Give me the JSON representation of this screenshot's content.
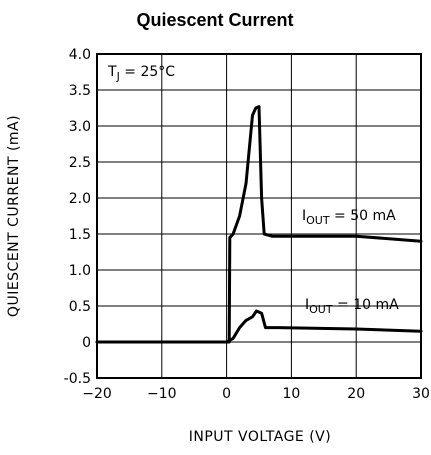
{
  "chart_data": {
    "type": "line",
    "title": "Quiescent Current",
    "xlabel": "INPUT VOLTAGE (V)",
    "ylabel": "QUIESCENT CURRENT (mA)",
    "xlim": [
      -20,
      30
    ],
    "ylim": [
      -0.5,
      4.0
    ],
    "x_ticks": [
      "-20",
      "-10",
      "0",
      "10",
      "20",
      "30"
    ],
    "y_ticks": [
      "-0.5",
      "0",
      "0.5",
      "1.0",
      "1.5",
      "2.0",
      "2.5",
      "3.0",
      "3.5",
      "4.0"
    ],
    "grid": true,
    "annotation": {
      "main": "T",
      "sub": "J",
      "rest": " = 25°C"
    },
    "series": [
      {
        "name_parts": {
          "main": "I",
          "sub": "OUT",
          "rest": " = 50 mA"
        },
        "points": [
          [
            -20,
            0
          ],
          [
            0.4,
            0
          ],
          [
            0.5,
            1.45
          ],
          [
            1,
            1.5
          ],
          [
            2,
            1.75
          ],
          [
            3,
            2.2
          ],
          [
            4,
            3.15
          ],
          [
            4.5,
            3.25
          ],
          [
            5,
            3.27
          ],
          [
            5.4,
            2.0
          ],
          [
            5.8,
            1.5
          ],
          [
            7,
            1.47
          ],
          [
            20,
            1.47
          ],
          [
            30,
            1.4
          ]
        ]
      },
      {
        "name_parts": {
          "main": "I",
          "sub": "OUT",
          "rest": " = 10 mA"
        },
        "points": [
          [
            -20,
            0
          ],
          [
            0,
            0
          ],
          [
            1,
            0.05
          ],
          [
            2,
            0.2
          ],
          [
            3,
            0.3
          ],
          [
            4,
            0.35
          ],
          [
            4.6,
            0.43
          ],
          [
            5.4,
            0.4
          ],
          [
            6,
            0.2
          ],
          [
            8,
            0.2
          ],
          [
            20,
            0.18
          ],
          [
            30,
            0.15
          ]
        ]
      }
    ]
  }
}
